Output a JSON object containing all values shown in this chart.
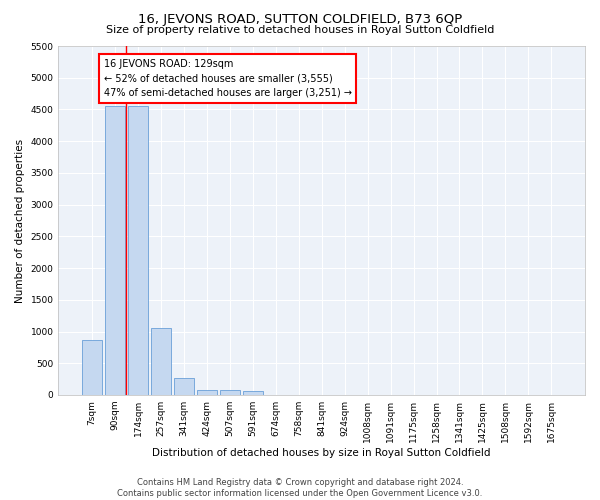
{
  "title": "16, JEVONS ROAD, SUTTON COLDFIELD, B73 6QP",
  "subtitle": "Size of property relative to detached houses in Royal Sutton Coldfield",
  "xlabel": "Distribution of detached houses by size in Royal Sutton Coldfield",
  "ylabel": "Number of detached properties",
  "footer_line1": "Contains HM Land Registry data © Crown copyright and database right 2024.",
  "footer_line2": "Contains public sector information licensed under the Open Government Licence v3.0.",
  "annotation_line1": "16 JEVONS ROAD: 129sqm",
  "annotation_line2": "← 52% of detached houses are smaller (3,555)",
  "annotation_line3": "47% of semi-detached houses are larger (3,251) →",
  "bar_labels": [
    "7sqm",
    "90sqm",
    "174sqm",
    "257sqm",
    "341sqm",
    "424sqm",
    "507sqm",
    "591sqm",
    "674sqm",
    "758sqm",
    "841sqm",
    "924sqm",
    "1008sqm",
    "1091sqm",
    "1175sqm",
    "1258sqm",
    "1341sqm",
    "1425sqm",
    "1508sqm",
    "1592sqm",
    "1675sqm"
  ],
  "bar_values": [
    870,
    4550,
    4550,
    1050,
    275,
    75,
    75,
    55,
    0,
    0,
    0,
    0,
    0,
    0,
    0,
    0,
    0,
    0,
    0,
    0,
    0
  ],
  "bar_color": "#c5d8f0",
  "bar_edge_color": "#6a9fd8",
  "red_line_x": 1.47,
  "ylim": [
    0,
    5500
  ],
  "yticks": [
    0,
    500,
    1000,
    1500,
    2000,
    2500,
    3000,
    3500,
    4000,
    4500,
    5000,
    5500
  ],
  "bg_color": "#edf2f9",
  "grid_color": "#ffffff",
  "title_fontsize": 9.5,
  "subtitle_fontsize": 8.0,
  "axis_label_fontsize": 7.5,
  "tick_fontsize": 6.5,
  "footer_fontsize": 6.0,
  "annotation_fontsize": 7.0
}
